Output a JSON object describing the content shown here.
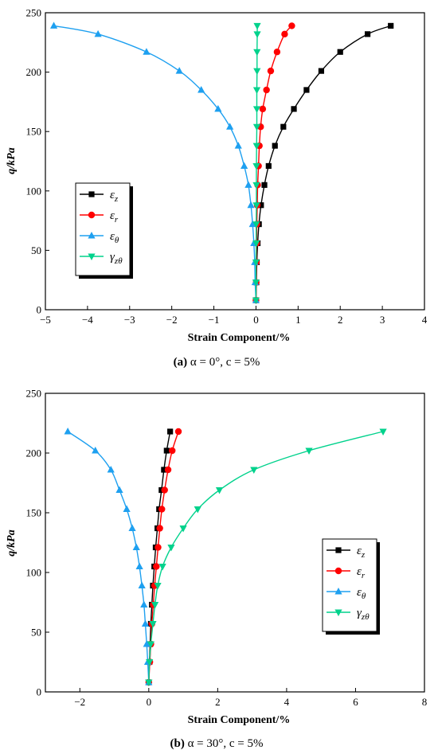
{
  "chart_data": [
    {
      "type": "line",
      "caption": {
        "letter": "(a)",
        "rest": " α = 0°, c = 5%"
      },
      "xlabel": "Strain Component/%",
      "ylabel": "q/kPa",
      "xlim": [
        -5,
        4
      ],
      "ylim": [
        0,
        250
      ],
      "xticks": [
        -5,
        -4,
        -3,
        -2,
        -1,
        0,
        1,
        2,
        3,
        4
      ],
      "yticks": [
        0,
        50,
        100,
        150,
        200,
        250
      ],
      "xtick_labels": [
        "−5",
        "−4",
        "−3",
        "−2",
        "−1",
        "0",
        "1",
        "2",
        "3",
        "4"
      ],
      "ytick_labels": [
        "0",
        "50",
        "100",
        "150",
        "200",
        "250"
      ],
      "legend": {
        "placement": "middle-left",
        "entries": [
          {
            "base": "ε",
            "sub": "z"
          },
          {
            "base": "ε",
            "sub": "r"
          },
          {
            "base": "ε",
            "sub": "θ"
          },
          {
            "base": "γ",
            "sub": "zθ"
          }
        ]
      },
      "series": [
        {
          "color": "#000000",
          "marker": "square",
          "points": [
            [
              0,
              8
            ],
            [
              0.01,
              23
            ],
            [
              0.02,
              40
            ],
            [
              0.04,
              56
            ],
            [
              0.07,
              72
            ],
            [
              0.12,
              88
            ],
            [
              0.2,
              105
            ],
            [
              0.3,
              121
            ],
            [
              0.45,
              138
            ],
            [
              0.65,
              154
            ],
            [
              0.9,
              169
            ],
            [
              1.2,
              185
            ],
            [
              1.55,
              201
            ],
            [
              2.0,
              217
            ],
            [
              2.65,
              232
            ],
            [
              3.2,
              239
            ]
          ]
        },
        {
          "color": "#ff0000",
          "marker": "circle",
          "points": [
            [
              0,
              8
            ],
            [
              0.005,
              23
            ],
            [
              0.01,
              40
            ],
            [
              0.015,
              56
            ],
            [
              0.02,
              72
            ],
            [
              0.03,
              88
            ],
            [
              0.04,
              105
            ],
            [
              0.06,
              121
            ],
            [
              0.08,
              138
            ],
            [
              0.11,
              154
            ],
            [
              0.16,
              169
            ],
            [
              0.25,
              185
            ],
            [
              0.35,
              201
            ],
            [
              0.5,
              217
            ],
            [
              0.68,
              232
            ],
            [
              0.85,
              239
            ]
          ]
        },
        {
          "color": "#1ea0f0",
          "marker": "triangle-up",
          "points": [
            [
              0,
              8
            ],
            [
              -0.02,
              23
            ],
            [
              -0.03,
              40
            ],
            [
              -0.05,
              56
            ],
            [
              -0.08,
              72
            ],
            [
              -0.12,
              88
            ],
            [
              -0.18,
              105
            ],
            [
              -0.28,
              121
            ],
            [
              -0.42,
              138
            ],
            [
              -0.62,
              154
            ],
            [
              -0.9,
              169
            ],
            [
              -1.3,
              185
            ],
            [
              -1.82,
              201
            ],
            [
              -2.6,
              217
            ],
            [
              -3.75,
              232
            ],
            [
              -4.8,
              239
            ]
          ]
        },
        {
          "color": "#00d28c",
          "marker": "triangle-down",
          "points": [
            [
              0,
              8
            ],
            [
              0,
              23
            ],
            [
              0,
              40
            ],
            [
              0.005,
              56
            ],
            [
              0.005,
              72
            ],
            [
              0.01,
              88
            ],
            [
              0.01,
              105
            ],
            [
              0.01,
              121
            ],
            [
              0.015,
              138
            ],
            [
              0.02,
              154
            ],
            [
              0.02,
              169
            ],
            [
              0.02,
              185
            ],
            [
              0.025,
              201
            ],
            [
              0.025,
              217
            ],
            [
              0.03,
              232
            ],
            [
              0.03,
              239
            ]
          ]
        }
      ]
    },
    {
      "type": "line",
      "caption": {
        "letter": "(b)",
        "rest": " α = 30°, c = 5%"
      },
      "xlabel": "Strain Component/%",
      "ylabel": "q/kPa",
      "xlim": [
        -3,
        8
      ],
      "ylim": [
        0,
        250
      ],
      "xticks": [
        -2,
        0,
        2,
        4,
        6,
        8
      ],
      "yticks": [
        0,
        50,
        100,
        150,
        200,
        250
      ],
      "xtick_labels": [
        "−2",
        "0",
        "2",
        "4",
        "6",
        "8"
      ],
      "ytick_labels": [
        "0",
        "50",
        "100",
        "150",
        "200",
        "250"
      ],
      "legend": {
        "placement": "middle-right",
        "entries": [
          {
            "base": "ε",
            "sub": "z"
          },
          {
            "base": "ε",
            "sub": "r"
          },
          {
            "base": "ε",
            "sub": "θ"
          },
          {
            "base": "γ",
            "sub": "zθ"
          }
        ]
      },
      "series": [
        {
          "color": "#000000",
          "marker": "square",
          "points": [
            [
              0,
              8
            ],
            [
              0.02,
              25
            ],
            [
              0.04,
              40
            ],
            [
              0.06,
              57
            ],
            [
              0.09,
              73
            ],
            [
              0.12,
              89
            ],
            [
              0.16,
              105
            ],
            [
              0.2,
              121
            ],
            [
              0.25,
              137
            ],
            [
              0.3,
              153
            ],
            [
              0.37,
              169
            ],
            [
              0.44,
              186
            ],
            [
              0.52,
              202
            ],
            [
              0.62,
              218
            ]
          ]
        },
        {
          "color": "#ff0000",
          "marker": "circle",
          "points": [
            [
              0,
              8
            ],
            [
              0.03,
              25
            ],
            [
              0.06,
              40
            ],
            [
              0.09,
              57
            ],
            [
              0.13,
              73
            ],
            [
              0.17,
              89
            ],
            [
              0.22,
              105
            ],
            [
              0.27,
              121
            ],
            [
              0.32,
              137
            ],
            [
              0.38,
              153
            ],
            [
              0.46,
              169
            ],
            [
              0.56,
              186
            ],
            [
              0.68,
              202
            ],
            [
              0.86,
              218
            ]
          ]
        },
        {
          "color": "#1ea0f0",
          "marker": "triangle-up",
          "points": [
            [
              0,
              8
            ],
            [
              -0.03,
              25
            ],
            [
              -0.06,
              40
            ],
            [
              -0.1,
              57
            ],
            [
              -0.14,
              73
            ],
            [
              -0.2,
              89
            ],
            [
              -0.27,
              105
            ],
            [
              -0.36,
              121
            ],
            [
              -0.48,
              137
            ],
            [
              -0.64,
              153
            ],
            [
              -0.85,
              169
            ],
            [
              -1.1,
              186
            ],
            [
              -1.55,
              202
            ],
            [
              -2.35,
              218
            ]
          ]
        },
        {
          "color": "#00d28c",
          "marker": "triangle-down",
          "points": [
            [
              0,
              8
            ],
            [
              0.02,
              25
            ],
            [
              0.06,
              40
            ],
            [
              0.12,
              57
            ],
            [
              0.18,
              73
            ],
            [
              0.26,
              89
            ],
            [
              0.4,
              105
            ],
            [
              0.65,
              121
            ],
            [
              1.0,
              137
            ],
            [
              1.42,
              153
            ],
            [
              2.05,
              169
            ],
            [
              3.05,
              186
            ],
            [
              4.65,
              202
            ],
            [
              6.8,
              218
            ]
          ]
        }
      ]
    }
  ]
}
